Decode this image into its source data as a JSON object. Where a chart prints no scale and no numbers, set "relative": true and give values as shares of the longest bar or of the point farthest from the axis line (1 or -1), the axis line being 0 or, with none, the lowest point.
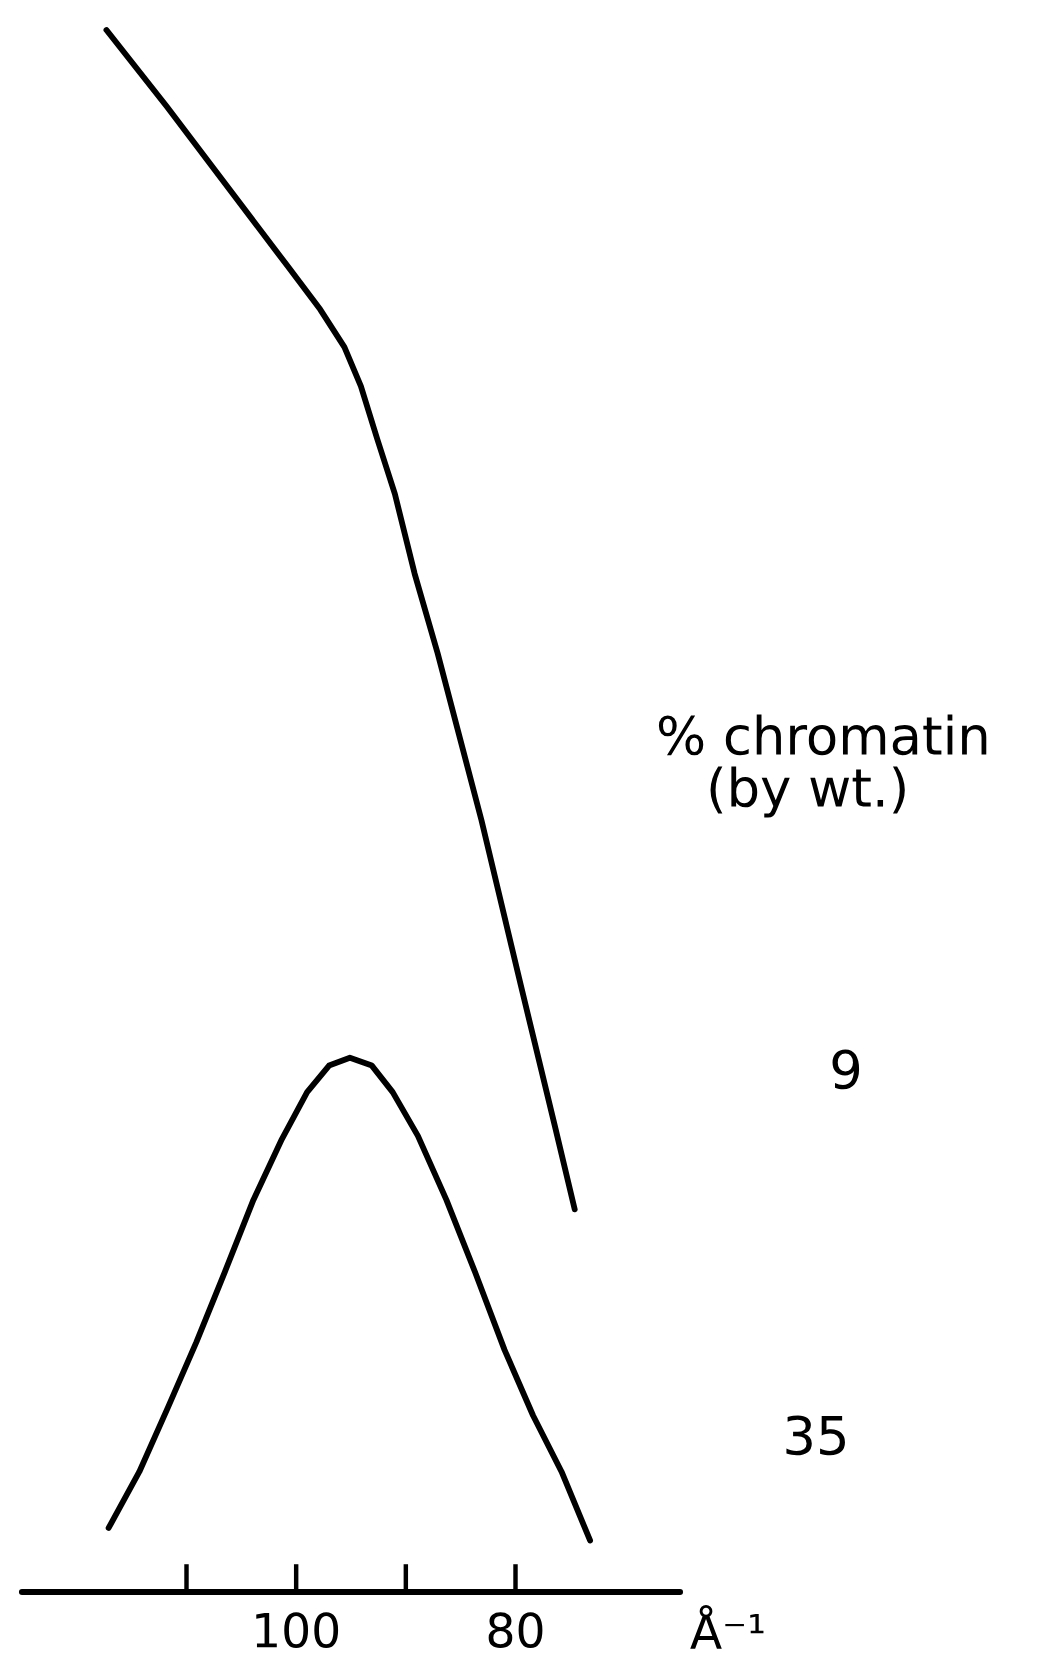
{
  "chart_data": {
    "type": "line",
    "relative": true,
    "xlabel": "Å⁻¹",
    "xlim": [
      125,
      65
    ],
    "xticks": [
      {
        "value": 110,
        "label": null
      },
      100,
      {
        "value": 90,
        "label": null
      },
      80
    ],
    "series": [
      {
        "color": "#000000",
        "x": [
          117.3,
          111.8,
          100.8,
          97.8,
          95.6,
          94.1,
          92.6,
          91.0,
          89.2,
          87.1,
          83.1,
          79.5,
          76.4,
          74.6
        ],
        "values": [
          1.0,
          0.951,
          0.849,
          0.821,
          0.797,
          0.772,
          0.738,
          0.703,
          0.652,
          0.601,
          0.494,
          0.388,
          0.298,
          0.245
        ]
      },
      {
        "color": "#000000",
        "x": [
          117.1,
          114.3,
          111.7,
          109.1,
          106.5,
          103.9,
          101.3,
          99.0,
          97.0,
          95.1,
          93.1,
          91.2,
          88.9,
          86.3,
          83.7,
          81.0,
          78.4,
          75.8,
          73.2
        ],
        "values": [
          0.041,
          0.077,
          0.118,
          0.16,
          0.205,
          0.251,
          0.29,
          0.32,
          0.337,
          0.342,
          0.337,
          0.32,
          0.292,
          0.251,
          0.205,
          0.155,
          0.113,
          0.077,
          0.033
        ]
      }
    ],
    "annotations": [
      "% chromatin",
      "(by wt.)",
      "9",
      "35"
    ]
  }
}
